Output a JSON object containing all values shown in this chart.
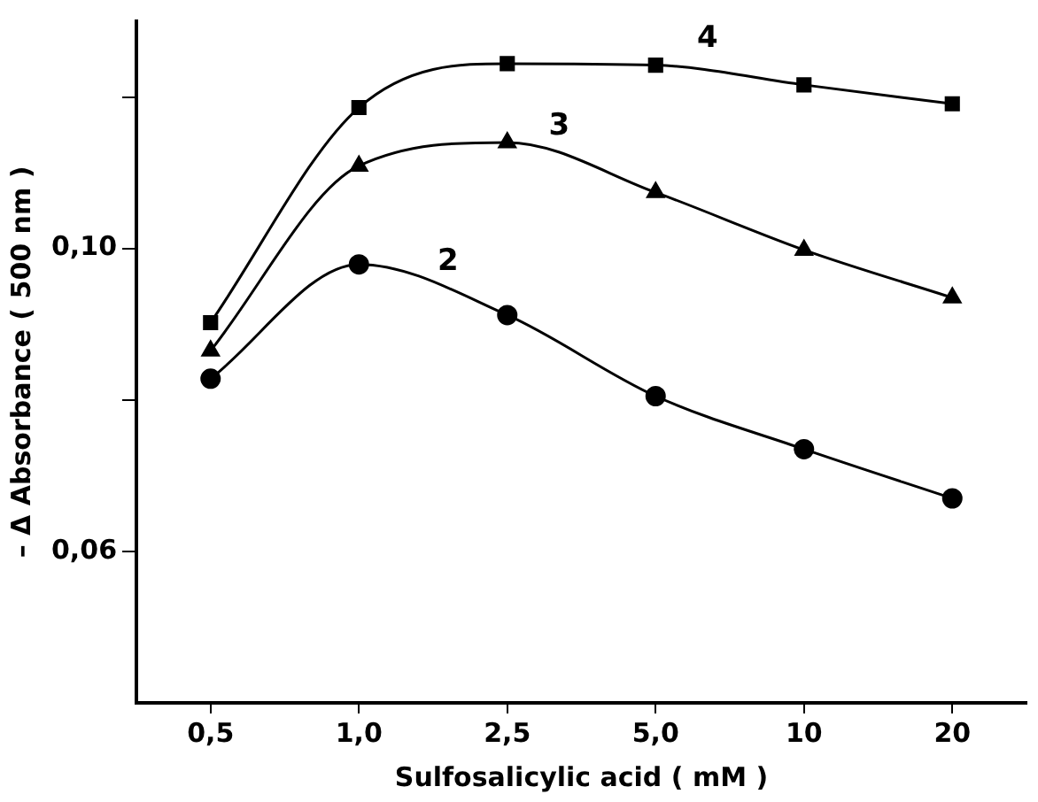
{
  "chart_data": {
    "type": "line",
    "xlabel": "Sulfosalicylic acid ( mM )",
    "ylabel": "– Δ Absorbance ( 500 nm )",
    "categories": [
      "0,5",
      "1,0",
      "2,5",
      "5,0",
      "10",
      "20"
    ],
    "ylim": [
      0.04,
      0.13
    ],
    "yticks": [
      {
        "value": 0.06,
        "label": "0,06"
      },
      {
        "value": 0.08,
        "label": null
      },
      {
        "value": 0.1,
        "label": "0,10"
      },
      {
        "value": 0.12,
        "label": null
      }
    ],
    "grid": false,
    "legend": false,
    "series": [
      {
        "name": "4",
        "color": "#000000",
        "marker": "square",
        "values": [
          0.0902,
          0.1186,
          0.1244,
          0.1242,
          0.1216,
          0.1191
        ]
      },
      {
        "name": "3",
        "color": "#000000",
        "marker": "triangle",
        "values": [
          0.0865,
          0.1109,
          0.114,
          0.1074,
          0.0998,
          0.0935
        ]
      },
      {
        "name": "2",
        "color": "#000000",
        "marker": "circle",
        "values": [
          0.0828,
          0.0979,
          0.0912,
          0.0805,
          0.0735,
          0.067
        ]
      }
    ]
  }
}
